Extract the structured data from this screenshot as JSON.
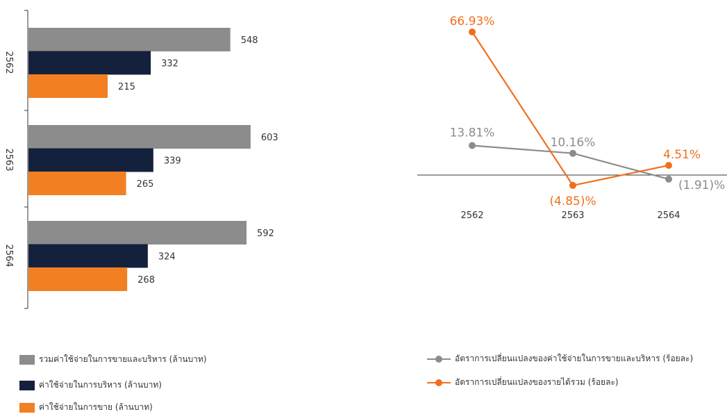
{
  "chart_data": [
    {
      "type": "bar",
      "orientation": "horizontal",
      "categories": [
        "2562",
        "2563",
        "2564"
      ],
      "series": [
        {
          "name": "รวมค่าใช้จ่ายในการขายและบริหาร (ล้านบาท)",
          "values": [
            548,
            603,
            592
          ],
          "color": "#8c8c8c"
        },
        {
          "name": "ค่าใช้จ่ายในการบริหาร (ล้านบาท)",
          "values": [
            332,
            339,
            324
          ],
          "color": "#14213d"
        },
        {
          "name": "ค่าใช้จ่ายในการขาย (ล้านบาท)",
          "values": [
            215,
            265,
            268
          ],
          "color": "#f28022"
        }
      ],
      "xlim": [
        0,
        820
      ],
      "grid": false,
      "legend_position": "bottom-left"
    },
    {
      "type": "line",
      "x": [
        "2562",
        "2563",
        "2564"
      ],
      "series": [
        {
          "name": "อัตราการเปลี่ยนแปลงของค่าใช้จ่ายในการขายและบริหาร (ร้อยละ)",
          "values": [
            13.81,
            10.16,
            -1.91
          ],
          "labels": [
            "13.81%",
            "10.16%",
            "(1.91)%"
          ],
          "color": "#8c8c8c"
        },
        {
          "name": "อัตราการเปลี่ยนแปลงของรายได้รวม (ร้อยละ)",
          "values": [
            66.93,
            -4.85,
            4.51
          ],
          "labels": [
            "66.93%",
            "(4.85)%",
            "4.51%"
          ],
          "color": "#f06f1e"
        }
      ],
      "ylim": [
        -12,
        72
      ],
      "grid": false,
      "legend_position": "bottom-right"
    }
  ]
}
